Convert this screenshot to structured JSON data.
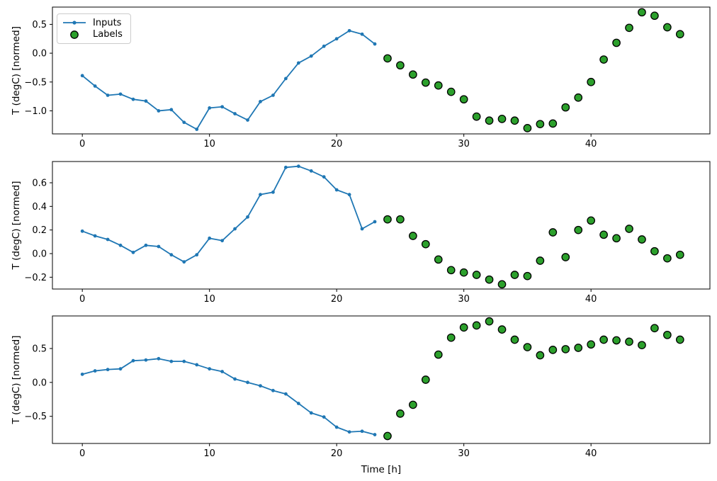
{
  "figure": {
    "background": "#ffffff",
    "text_color": "#000000",
    "spine_color": "#000000",
    "legend": {
      "position": "upper left",
      "entries": [
        "Inputs",
        "Labels"
      ],
      "border_color": "#cccccc"
    }
  },
  "colors": {
    "inputs_line": "#1f77b4",
    "labels_fill": "#2ca02c",
    "labels_edge": "#000000"
  },
  "chart_data": [
    {
      "type": "line+scatter",
      "title": "",
      "xlabel": "",
      "ylabel": "T (degC) [normed]",
      "xlim": [
        -2.35,
        49.35
      ],
      "ylim": [
        -1.4,
        0.8
      ],
      "xticks": [
        0,
        10,
        20,
        30,
        40
      ],
      "yticks": [
        0.5,
        0.0,
        -0.5,
        -1.0
      ],
      "grid": false,
      "legend_visible": true,
      "series": [
        {
          "name": "Inputs",
          "kind": "line",
          "color": "#1f77b4",
          "marker": "point",
          "x": [
            0,
            1,
            2,
            3,
            4,
            5,
            6,
            7,
            8,
            9,
            10,
            11,
            12,
            13,
            14,
            15,
            16,
            17,
            18,
            19,
            20,
            21,
            22,
            23
          ],
          "y": [
            -0.39,
            -0.57,
            -0.73,
            -0.71,
            -0.8,
            -0.83,
            -1.0,
            -0.98,
            -1.2,
            -1.32,
            -0.95,
            -0.93,
            -1.05,
            -1.16,
            -0.84,
            -0.73,
            -0.44,
            -0.17,
            -0.05,
            0.12,
            0.25,
            0.39,
            0.33,
            0.16
          ]
        },
        {
          "name": "Labels",
          "kind": "scatter",
          "color": "#2ca02c",
          "edgecolor": "#000000",
          "x": [
            24,
            25,
            26,
            27,
            28,
            29,
            30,
            31,
            32,
            33,
            34,
            35,
            36,
            37,
            38,
            39,
            40,
            41,
            42,
            43,
            44,
            45,
            46,
            47
          ],
          "y": [
            -0.09,
            -0.21,
            -0.37,
            -0.51,
            -0.56,
            -0.67,
            -0.8,
            -1.1,
            -1.17,
            -1.14,
            -1.17,
            -1.3,
            -1.23,
            -1.22,
            -0.94,
            -0.77,
            -0.5,
            -0.11,
            0.18,
            0.44,
            0.71,
            0.65,
            0.45,
            0.33
          ]
        }
      ]
    },
    {
      "type": "line+scatter",
      "title": "",
      "xlabel": "",
      "ylabel": "T (degC) [normed]",
      "xlim": [
        -2.35,
        49.35
      ],
      "ylim": [
        -0.3,
        0.78
      ],
      "xticks": [
        0,
        10,
        20,
        30,
        40
      ],
      "yticks": [
        0.6,
        0.4,
        0.2,
        0.0,
        -0.2
      ],
      "grid": false,
      "legend_visible": false,
      "series": [
        {
          "name": "Inputs",
          "kind": "line",
          "color": "#1f77b4",
          "marker": "point",
          "x": [
            0,
            1,
            2,
            3,
            4,
            5,
            6,
            7,
            8,
            9,
            10,
            11,
            12,
            13,
            14,
            15,
            16,
            17,
            18,
            19,
            20,
            21,
            22,
            23
          ],
          "y": [
            0.19,
            0.15,
            0.12,
            0.07,
            0.01,
            0.07,
            0.06,
            -0.01,
            -0.07,
            -0.01,
            0.13,
            0.11,
            0.21,
            0.31,
            0.5,
            0.52,
            0.73,
            0.74,
            0.7,
            0.65,
            0.54,
            0.5,
            0.21,
            0.27
          ]
        },
        {
          "name": "Labels",
          "kind": "scatter",
          "color": "#2ca02c",
          "edgecolor": "#000000",
          "x": [
            24,
            25,
            26,
            27,
            28,
            29,
            30,
            31,
            32,
            33,
            34,
            35,
            36,
            37,
            38,
            39,
            40,
            41,
            42,
            43,
            44,
            45,
            46,
            47
          ],
          "y": [
            0.29,
            0.29,
            0.15,
            0.08,
            -0.05,
            -0.14,
            -0.16,
            -0.18,
            -0.22,
            -0.26,
            -0.18,
            -0.19,
            -0.06,
            0.18,
            -0.03,
            0.2,
            0.28,
            0.16,
            0.13,
            0.21,
            0.12,
            0.02,
            -0.04,
            -0.01
          ]
        }
      ]
    },
    {
      "type": "line+scatter",
      "title": "",
      "xlabel": "Time [h]",
      "ylabel": "T (degC) [normed]",
      "xlim": [
        -2.35,
        49.35
      ],
      "ylim": [
        -0.9,
        0.98
      ],
      "xticks": [
        0,
        10,
        20,
        30,
        40
      ],
      "yticks": [
        0.5,
        0.0,
        -0.5
      ],
      "grid": false,
      "legend_visible": false,
      "series": [
        {
          "name": "Inputs",
          "kind": "line",
          "color": "#1f77b4",
          "marker": "point",
          "x": [
            0,
            1,
            2,
            3,
            4,
            5,
            6,
            7,
            8,
            9,
            10,
            11,
            12,
            13,
            14,
            15,
            16,
            17,
            18,
            19,
            20,
            21,
            22,
            23
          ],
          "y": [
            0.12,
            0.17,
            0.19,
            0.2,
            0.32,
            0.33,
            0.35,
            0.31,
            0.31,
            0.26,
            0.2,
            0.16,
            0.05,
            0.0,
            -0.05,
            -0.12,
            -0.17,
            -0.31,
            -0.45,
            -0.51,
            -0.66,
            -0.73,
            -0.72,
            -0.77
          ]
        },
        {
          "name": "Labels",
          "kind": "scatter",
          "color": "#2ca02c",
          "edgecolor": "#000000",
          "x": [
            24,
            25,
            26,
            27,
            28,
            29,
            30,
            31,
            32,
            33,
            34,
            35,
            36,
            37,
            38,
            39,
            40,
            41,
            42,
            43,
            44,
            45,
            46,
            47
          ],
          "y": [
            -0.79,
            -0.46,
            -0.33,
            0.04,
            0.41,
            0.66,
            0.81,
            0.84,
            0.9,
            0.78,
            0.63,
            0.52,
            0.4,
            0.48,
            0.49,
            0.51,
            0.56,
            0.63,
            0.62,
            0.6,
            0.55,
            0.8,
            0.7,
            0.63
          ]
        }
      ]
    }
  ]
}
